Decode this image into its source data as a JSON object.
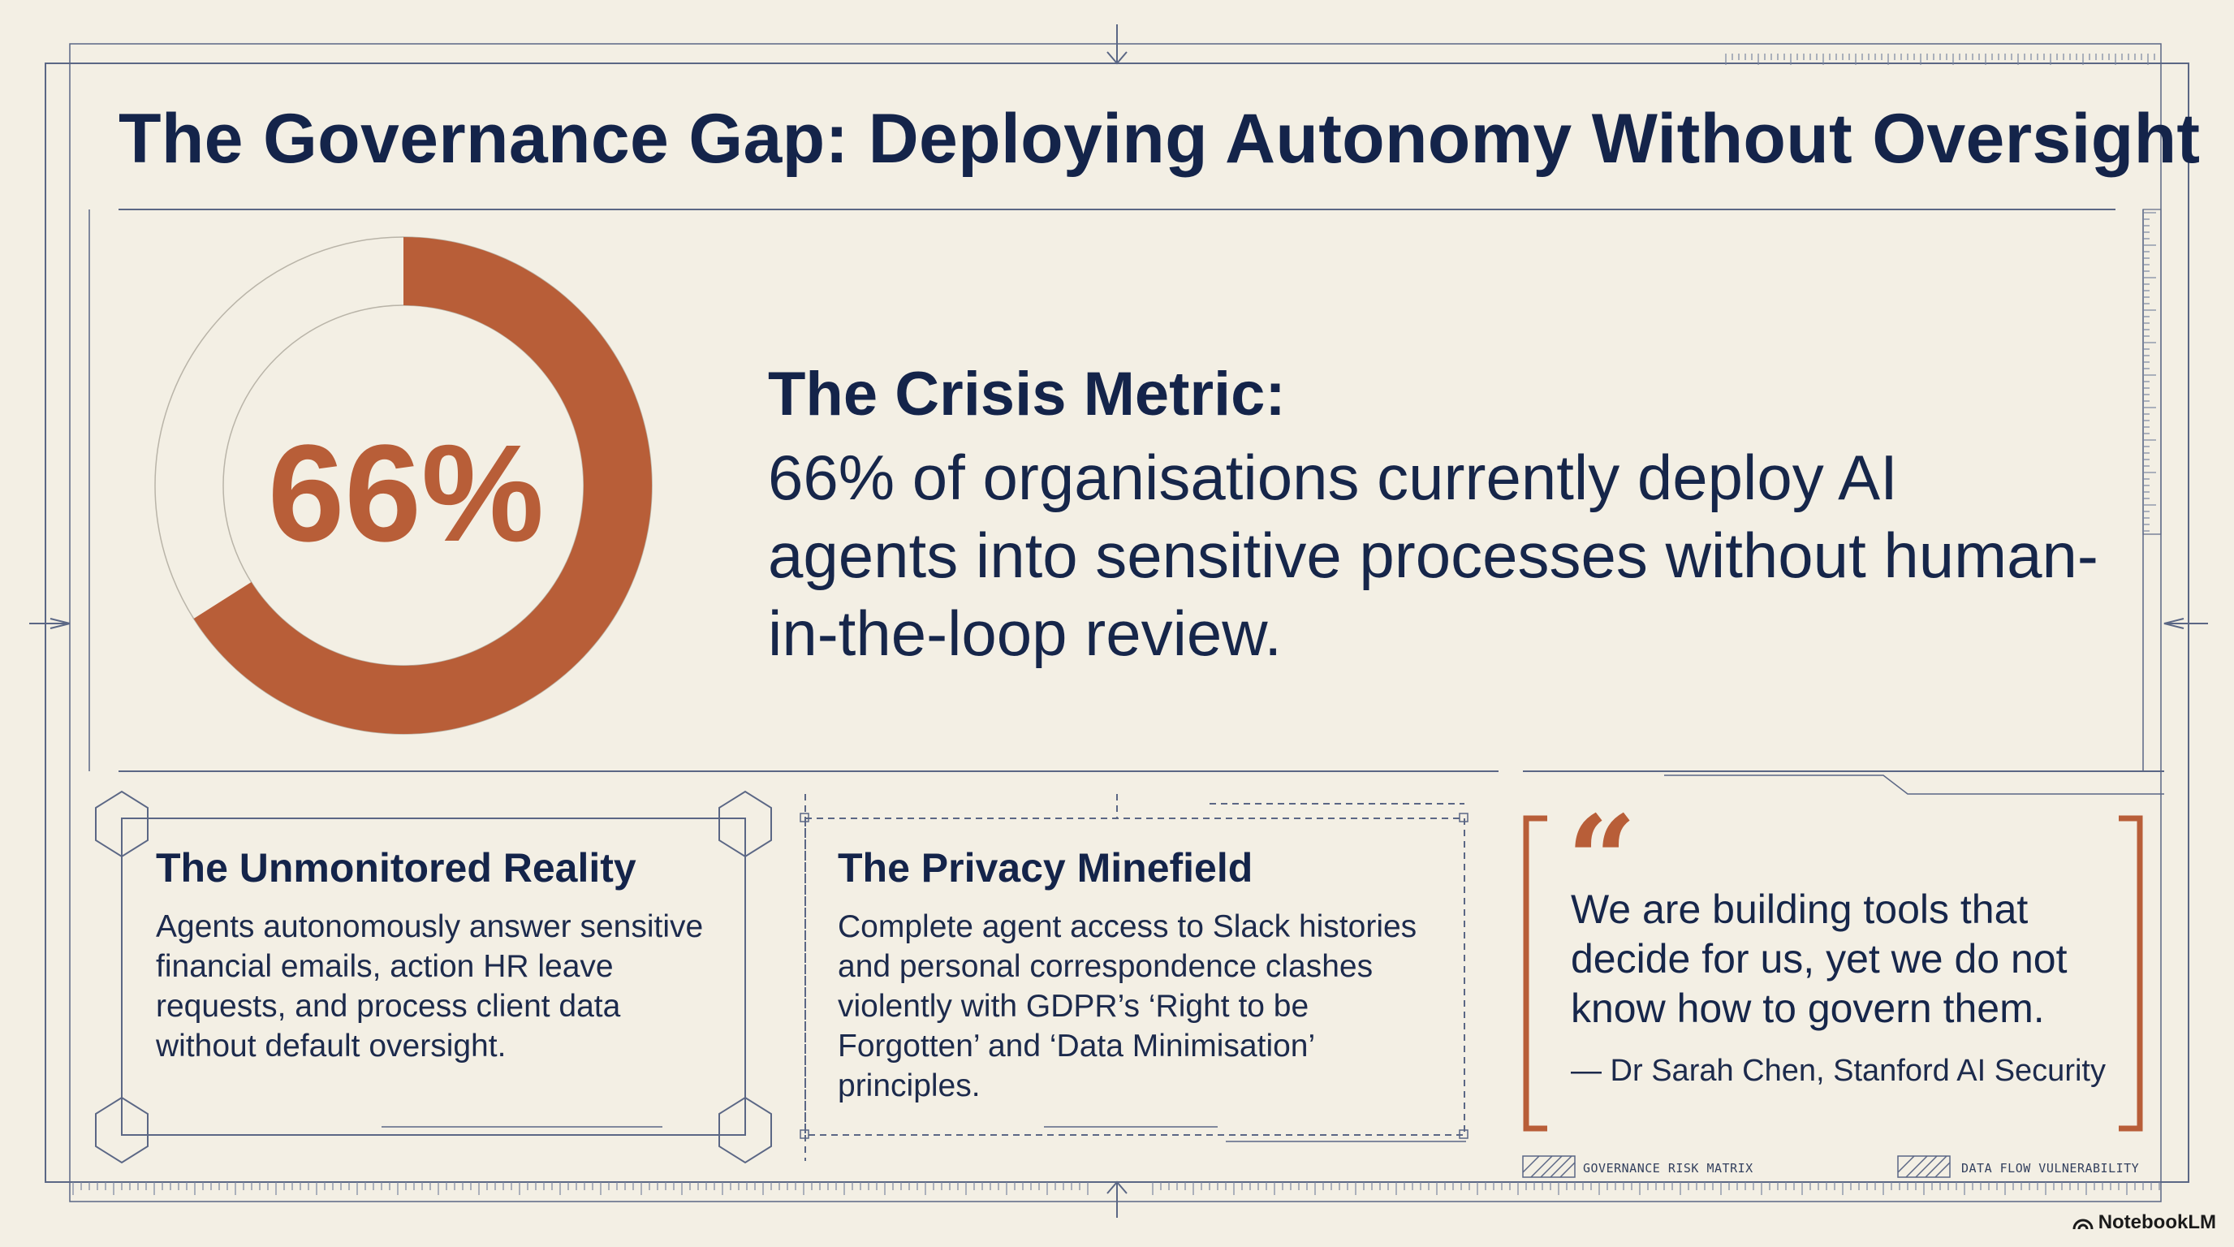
{
  "title": "The Governance Gap: Deploying Autonomy Without Oversight",
  "crisis": {
    "percentage_label": "66%",
    "percentage_value": 66,
    "heading": "The Crisis Metric:",
    "body": "66% of organisations currently deploy AI agents into sensitive processes without human-in-the-loop review."
  },
  "cards": [
    {
      "title": "The Unmonitored Reality",
      "body": "Agents autonomously answer sensitive financial emails, action HR leave requests, and process client data without default oversight."
    },
    {
      "title": "The Privacy Minefield",
      "body": "Complete agent access to Slack histories and personal correspondence clashes violently with GDPR’s ‘Right to be Forgotten’ and ‘Data Minimisation’ principles."
    }
  ],
  "quote": {
    "mark": "“",
    "text": "We are building tools that decide for us, yet we do not know how to govern them.",
    "attribution": "— Dr Sarah Chen, Stanford AI Security"
  },
  "footer_labels": {
    "left": "GOVERNANCE RISK MATRIX",
    "right": "DATA FLOW VULNERABILITY"
  },
  "brand": "NotebookLM",
  "colors": {
    "accent": "#b85e38",
    "navy": "#14244a",
    "background": "#f3efe4",
    "line": "#5b6785"
  }
}
